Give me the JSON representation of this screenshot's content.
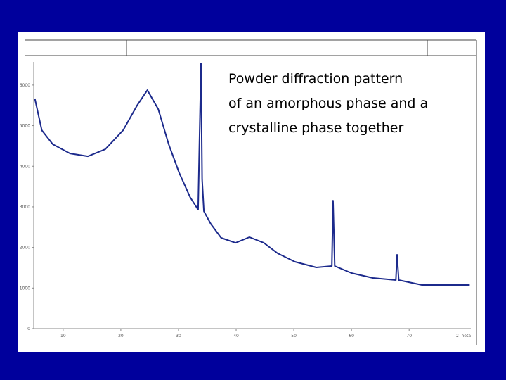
{
  "chart_data": {
    "type": "line",
    "annotation": [
      "Powder diffraction pattern",
      "of an amorphous phase and a",
      "crystalline phase together"
    ],
    "x_label": "2Theta",
    "x": [
      5.1,
      6.3,
      8.2,
      11.2,
      14.3,
      17.3,
      20.4,
      22.8,
      24.6,
      26.5,
      28.3,
      30.1,
      32.0,
      33.4,
      33.9,
      34.1,
      34.4,
      35.6,
      37.4,
      39.9,
      42.3,
      44.8,
      47.2,
      50.2,
      53.9,
      56.6,
      56.8,
      57.1,
      60.0,
      63.7,
      67.7,
      67.9,
      68.2,
      72.2,
      77.1,
      80.5
    ],
    "values": [
      5667,
      4887,
      4541,
      4315,
      4246,
      4419,
      4887,
      5494,
      5875,
      5407,
      4541,
      3847,
      3241,
      2929,
      6534,
      3674,
      2894,
      2582,
      2236,
      2114,
      2253,
      2114,
      1854,
      1646,
      1508,
      1542,
      3154,
      1542,
      1369,
      1248,
      1196,
      1820,
      1196,
      1075,
      1075,
      1075
    ],
    "color": "#1c2a8c",
    "xlim": [
      4.9,
      80.7
    ],
    "ylim": [
      0,
      6570
    ],
    "xticks": [
      10,
      20,
      30,
      40,
      50,
      60,
      70
    ],
    "yticks": [
      0,
      1000,
      2000,
      3000,
      4000,
      5000,
      6000
    ]
  }
}
